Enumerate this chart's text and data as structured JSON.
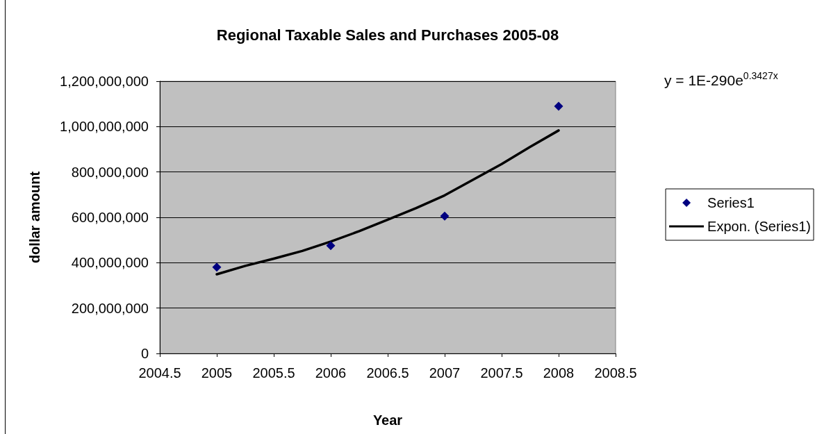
{
  "chart_data": {
    "type": "scatter",
    "title": "Regional Taxable Sales and Purchases 2005-08",
    "xlabel": "Year",
    "ylabel": "dollar amount",
    "annotations": [
      "y = 1E-290e$^{0.3427x}$"
    ],
    "series": [
      {
        "name": "Series1",
        "color": "#000080",
        "marker": "diamond",
        "x": [
          2005,
          2006,
          2007,
          2008
        ],
        "values": [
          380000000,
          475000000,
          605000000,
          1090000000
        ]
      },
      {
        "name": "Expon. (Series1)",
        "type": "line",
        "color": "#000000",
        "marker": "none",
        "x": [
          2005,
          2005.25,
          2005.5,
          2005.75,
          2006,
          2006.25,
          2006.5,
          2006.75,
          2007,
          2007.25,
          2007.5,
          2007.75,
          2008
        ],
        "values": [
          349000000,
          386000000,
          418000000,
          452000000,
          493000000,
          539000000,
          590000000,
          641000000,
          697000000,
          766000000,
          835000000,
          911000000,
          983000000
        ]
      }
    ],
    "xlim": [
      2004.5,
      2008.5
    ],
    "xticks": [
      2004.5,
      2005,
      2005.5,
      2006,
      2006.5,
      2007,
      2007.5,
      2008,
      2008.5
    ],
    "ylim": [
      0,
      1200000000
    ],
    "yticks": [
      0,
      {
        "value": 200000000,
        "label": "200,000,000"
      },
      {
        "value": 400000000,
        "label": "400,000,000"
      },
      {
        "value": 600000000,
        "label": "600,000,000"
      },
      {
        "value": 800000000,
        "label": "800,000,000"
      },
      {
        "value": 1000000000,
        "label": "1,000,000,000"
      },
      {
        "value": 1200000000,
        "label": "1,200,000,000"
      }
    ],
    "grid": "y",
    "legend": "right"
  }
}
